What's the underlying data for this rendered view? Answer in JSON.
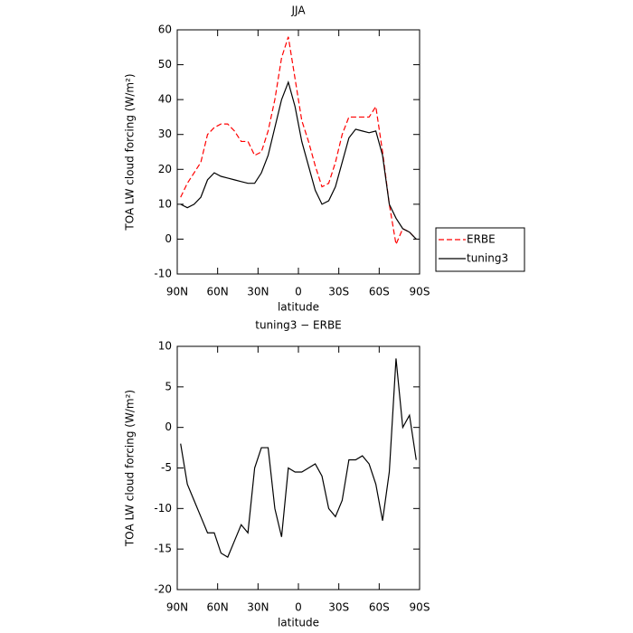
{
  "chart_data": [
    {
      "type": "line",
      "title": "JJA",
      "xlabel": "latitude",
      "ylabel": "TOA LW cloud forcing (W/m²)",
      "x": [
        87.5,
        82.5,
        77.5,
        72.5,
        67.5,
        62.5,
        57.5,
        52.5,
        47.5,
        42.5,
        37.5,
        32.5,
        27.5,
        22.5,
        17.5,
        12.5,
        7.5,
        2.5,
        -2.5,
        -7.5,
        -12.5,
        -17.5,
        -22.5,
        -27.5,
        -32.5,
        -37.5,
        -42.5,
        -47.5,
        -52.5,
        -57.5,
        -62.5,
        -67.5,
        -72.5,
        -77.5,
        -82.5,
        -87.5
      ],
      "series": [
        {
          "name": "ERBE",
          "color": "#ff0000",
          "dashed": true,
          "values": [
            12,
            16,
            19,
            22,
            30,
            32,
            33,
            33,
            31,
            28,
            28,
            24,
            25,
            31,
            40,
            52,
            58,
            46,
            34,
            28,
            21,
            15,
            16,
            22,
            30,
            35,
            35,
            35,
            35,
            38,
            25,
            10,
            -1.5,
            3,
            2,
            0
          ]
        },
        {
          "name": "tuning3",
          "color": "#000000",
          "dashed": false,
          "values": [
            10,
            9,
            10,
            12,
            17,
            19,
            18,
            17.5,
            17,
            16.5,
            16,
            16,
            19,
            24,
            32,
            40,
            45,
            38,
            28,
            21,
            14,
            10,
            11,
            15,
            22,
            29,
            31.5,
            31,
            30.5,
            31,
            24,
            10,
            6,
            3,
            2,
            0
          ]
        }
      ],
      "xlim": [
        90,
        -90
      ],
      "xticks": [
        {
          "value": 90,
          "label": "90N"
        },
        {
          "value": 60,
          "label": "60N"
        },
        {
          "value": 30,
          "label": "30N"
        },
        0,
        {
          "value": -30,
          "label": "30S"
        },
        {
          "value": -60,
          "label": "60S"
        },
        {
          "value": -90,
          "label": "90S"
        }
      ],
      "ylim": [
        -10,
        60
      ],
      "yticks": [
        -10,
        0,
        10,
        20,
        30,
        40,
        50,
        60
      ],
      "legend": "right"
    },
    {
      "type": "line",
      "title": "tuning3 − ERBE",
      "xlabel": "latitude",
      "ylabel": "TOA LW cloud forcing (W/m²)",
      "x": [
        87.5,
        82.5,
        77.5,
        72.5,
        67.5,
        62.5,
        57.5,
        52.5,
        47.5,
        42.5,
        37.5,
        32.5,
        27.5,
        22.5,
        17.5,
        12.5,
        7.5,
        2.5,
        -2.5,
        -7.5,
        -12.5,
        -17.5,
        -22.5,
        -27.5,
        -32.5,
        -37.5,
        -42.5,
        -47.5,
        -52.5,
        -57.5,
        -62.5,
        -67.5,
        -72.5,
        -77.5,
        -82.5,
        -87.5
      ],
      "color": "#000000",
      "values": [
        -2,
        -7,
        -9,
        -11,
        -13,
        -13,
        -15.5,
        -16,
        -14,
        -12,
        -13,
        -5,
        -2.5,
        -2.5,
        -10,
        -13.5,
        -5,
        -5.5,
        -5.5,
        -5,
        -4.5,
        -6,
        -10,
        -11,
        -9,
        -4,
        -4,
        -3.5,
        -4.5,
        -7,
        -11.5,
        -5.5,
        8.5,
        0,
        1.5,
        -4
      ],
      "xlim": [
        90,
        -90
      ],
      "xticks": [
        {
          "value": 90,
          "label": "90N"
        },
        {
          "value": 60,
          "label": "60N"
        },
        {
          "value": 30,
          "label": "30N"
        },
        0,
        {
          "value": -30,
          "label": "30S"
        },
        {
          "value": -60,
          "label": "60S"
        },
        {
          "value": -90,
          "label": "90S"
        }
      ],
      "ylim": [
        -20,
        10
      ],
      "yticks": [
        -20,
        -15,
        -10,
        -5,
        0,
        5,
        10
      ]
    }
  ]
}
